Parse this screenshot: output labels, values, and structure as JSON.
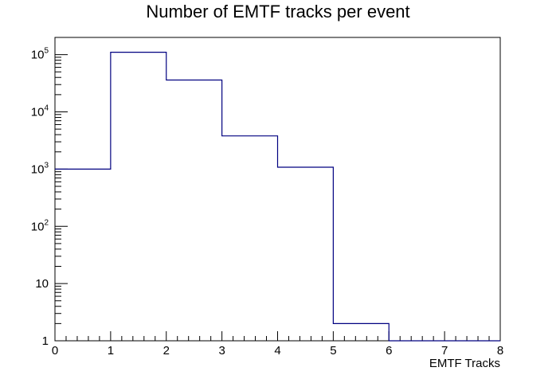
{
  "chart_data": {
    "type": "bar",
    "title": "Number of EMTF tracks per event",
    "xlabel": "EMTF Tracks",
    "ylabel": "",
    "x_bin_edges": [
      0,
      1,
      2,
      3,
      4,
      5,
      6,
      7,
      8
    ],
    "values": [
      1000,
      110000,
      36000,
      3800,
      1080,
      2,
      0,
      0
    ],
    "xlim": [
      0,
      8
    ],
    "ylim": [
      1,
      200000
    ],
    "y_scale": "log",
    "x_tick_labels": [
      "0",
      "1",
      "2",
      "3",
      "4",
      "5",
      "6",
      "7",
      "8"
    ],
    "y_tick_labels": [
      {
        "value": 1,
        "base": "1",
        "exp": ""
      },
      {
        "value": 10,
        "base": "10",
        "exp": ""
      },
      {
        "value": 100,
        "base": "10",
        "exp": "2"
      },
      {
        "value": 1000,
        "base": "10",
        "exp": "3"
      },
      {
        "value": 10000,
        "base": "10",
        "exp": "4"
      },
      {
        "value": 100000,
        "base": "10",
        "exp": "5"
      }
    ],
    "grid": false,
    "line_color": "#000080",
    "frame_color": "#000000"
  }
}
